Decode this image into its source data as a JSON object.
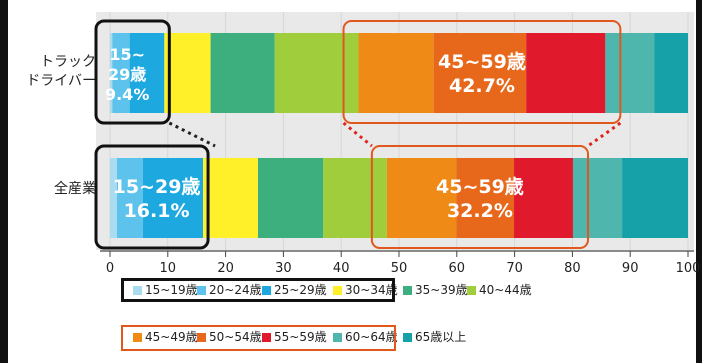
{
  "chart_data": {
    "type": "bar",
    "orientation": "horizontal",
    "stacked": true,
    "xlim": [
      0,
      100
    ],
    "x_ticks": [
      "0",
      "10",
      "20",
      "30",
      "40",
      "50",
      "60",
      "70",
      "80",
      "90",
      "100"
    ],
    "categories": [
      "トラック\nドライバー",
      "全産業"
    ],
    "series": [
      {
        "name": "15~19歳",
        "color": "#a9dcf1",
        "values": [
          0.4,
          1.2
        ]
      },
      {
        "name": "20~24歳",
        "color": "#5ec3ec",
        "values": [
          3.0,
          4.5
        ]
      },
      {
        "name": "25~29歳",
        "color": "#1ea8e0",
        "values": [
          6.0,
          10.4
        ]
      },
      {
        "name": "30~34歳",
        "color": "#fff02a",
        "values": [
          8.0,
          9.5
        ]
      },
      {
        "name": "35~39歳",
        "color": "#3daf7e",
        "values": [
          11.1,
          11.3
        ]
      },
      {
        "name": "40~44歳",
        "color": "#9fcd3c",
        "values": [
          14.5,
          11.0
        ]
      },
      {
        "name": "45~49歳",
        "color": "#ef8a17",
        "values": [
          13.0,
          12.0
        ]
      },
      {
        "name": "50~54歳",
        "color": "#e8681b",
        "values": [
          16.0,
          10.0
        ]
      },
      {
        "name": "55~59歳",
        "color": "#e1192d",
        "values": [
          13.7,
          10.2
        ]
      },
      {
        "name": "60~64歳",
        "color": "#4fb6ae",
        "values": [
          8.5,
          8.5
        ]
      },
      {
        "name": "65歳以上",
        "color": "#16a0a8",
        "values": [
          5.8,
          11.4
        ]
      }
    ],
    "annotations": [
      {
        "bar": 0,
        "group": "15~29",
        "lines": [
          "15~",
          "29歳",
          "9.4%"
        ]
      },
      {
        "bar": 0,
        "group": "45~59",
        "lines": [
          "45~59歳",
          "42.7%"
        ]
      },
      {
        "bar": 1,
        "group": "15~29",
        "lines": [
          "15~29歳",
          "16.1%"
        ]
      },
      {
        "bar": 1,
        "group": "45~59",
        "lines": [
          "45~59歳",
          "32.2%"
        ]
      }
    ],
    "legend_rows": [
      [
        "15~19歳",
        "20~24歳",
        "25~29歳",
        "30~34歳",
        "35~39歳",
        "40~44歳"
      ],
      [
        "45~49歳",
        "50~54歳",
        "55~59歳",
        "60~64歳",
        "65歳以上"
      ]
    ],
    "grid": true,
    "legend_position": "bottom"
  }
}
